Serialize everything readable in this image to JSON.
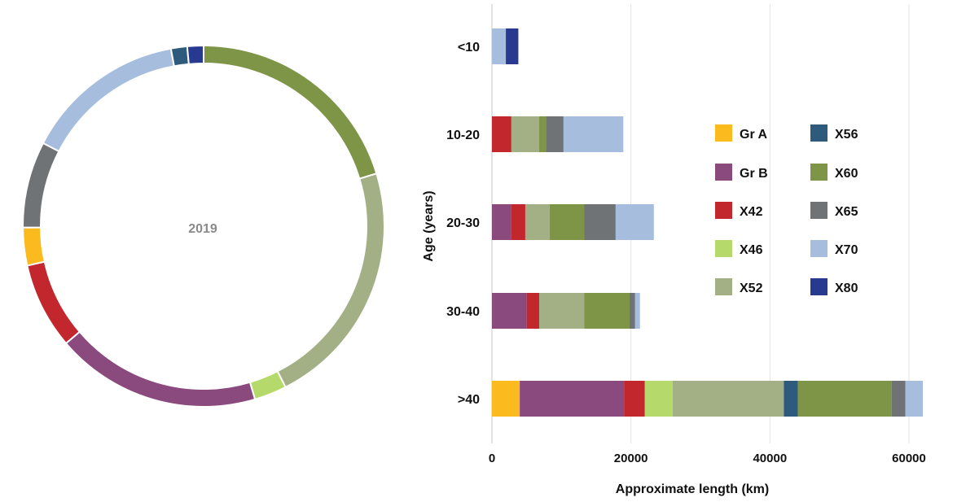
{
  "series_colors": {
    "Gr A": "#FBBA1E",
    "Gr B": "#8B4A7E",
    "X42": "#C1272D",
    "X46": "#B5D96A",
    "X52": "#A3B085",
    "X56": "#2E5A7C",
    "X60": "#7E9447",
    "X65": "#707375",
    "X70": "#A6BDDE",
    "X80": "#283A8F"
  },
  "chart_data": [
    {
      "type": "pie",
      "variant": "donut",
      "center_label": "2019",
      "slices": [
        {
          "name": "X60",
          "value": 21
        },
        {
          "name": "X52",
          "value": 23
        },
        {
          "name": "X46",
          "value": 3
        },
        {
          "name": "Gr B",
          "value": 19
        },
        {
          "name": "X42",
          "value": 8
        },
        {
          "name": "Gr A",
          "value": 3.5
        },
        {
          "name": "X65",
          "value": 8
        },
        {
          "name": "X70",
          "value": 15
        },
        {
          "name": "X56",
          "value": 1.5
        },
        {
          "name": "X80",
          "value": 1.5
        }
      ]
    },
    {
      "type": "bar",
      "orientation": "horizontal",
      "stacked": true,
      "categories": [
        "<10",
        "10-20",
        "20-30",
        "30-40",
        ">40"
      ],
      "xlabel": "Approximate length (km)",
      "ylabel": "Age (years)",
      "xlim": [
        0,
        62000
      ],
      "xticks": [
        "0",
        "20000",
        "40000",
        "60000"
      ],
      "xtick_values": [
        0,
        20000,
        40000,
        60000
      ],
      "legend": [
        "Gr A",
        "Gr B",
        "X42",
        "X46",
        "X52",
        "X56",
        "X60",
        "X65",
        "X70",
        "X80"
      ],
      "legend_layout": [
        "Gr A",
        "X56",
        "Gr B",
        "X60",
        "X42",
        "X65",
        "X46",
        "X70",
        "X52",
        "X80"
      ],
      "series": [
        {
          "name": "Gr A",
          "values": [
            0,
            0,
            0,
            0,
            4000
          ]
        },
        {
          "name": "Gr B",
          "values": [
            0,
            0,
            2800,
            5000,
            15000
          ]
        },
        {
          "name": "X42",
          "values": [
            0,
            2800,
            2000,
            1800,
            3000
          ]
        },
        {
          "name": "X46",
          "values": [
            0,
            0,
            0,
            0,
            4000
          ]
        },
        {
          "name": "X52",
          "values": [
            0,
            4000,
            3500,
            6500,
            16000
          ]
        },
        {
          "name": "X56",
          "values": [
            0,
            0,
            0,
            0,
            2000
          ]
        },
        {
          "name": "X60",
          "values": [
            0,
            1000,
            5000,
            6500,
            13500
          ]
        },
        {
          "name": "X65",
          "values": [
            0,
            2500,
            4500,
            800,
            2000
          ]
        },
        {
          "name": "X70",
          "values": [
            2000,
            8600,
            5500,
            700,
            2500
          ]
        },
        {
          "name": "X80",
          "values": [
            1800,
            0,
            0,
            0,
            0
          ]
        }
      ]
    }
  ]
}
